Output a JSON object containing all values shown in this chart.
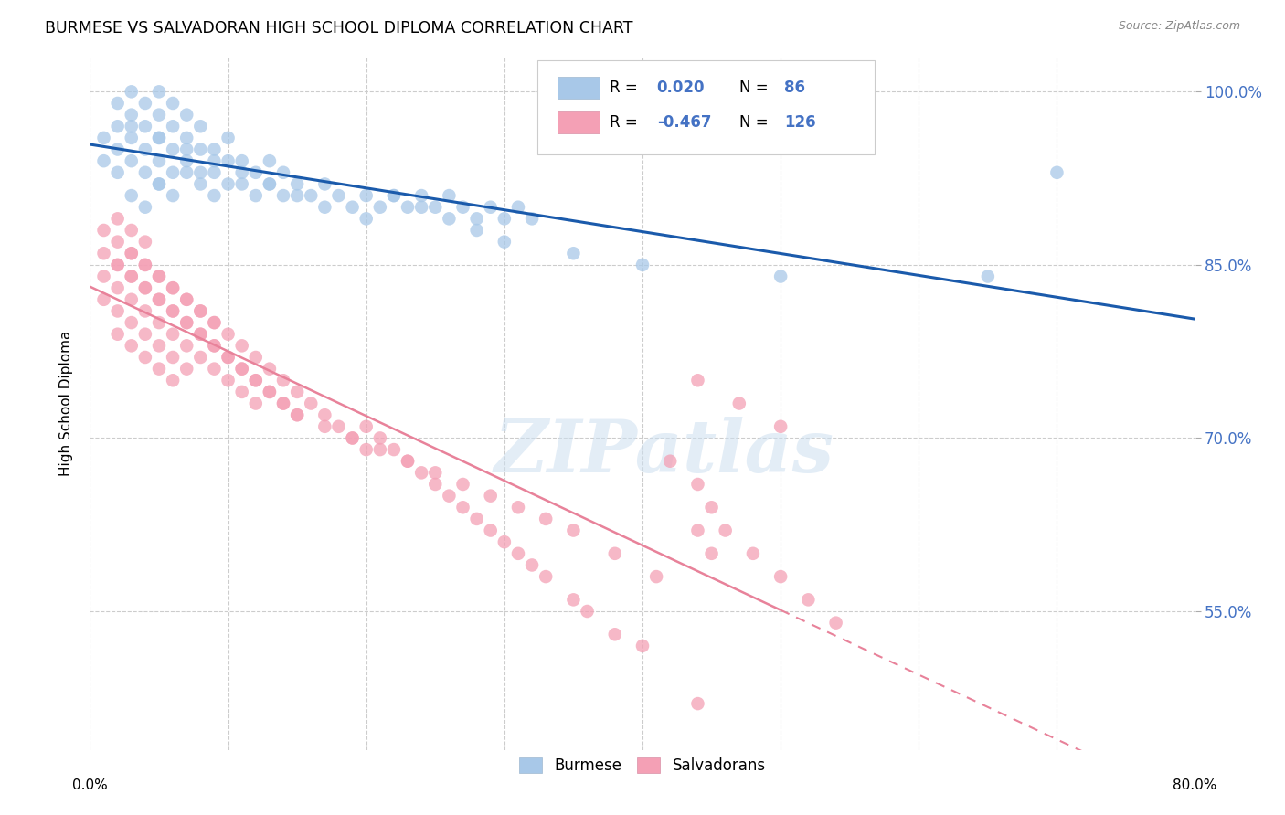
{
  "title": "BURMESE VS SALVADORAN HIGH SCHOOL DIPLOMA CORRELATION CHART",
  "source": "Source: ZipAtlas.com",
  "ylabel": "High School Diploma",
  "ytick_labels": [
    "100.0%",
    "85.0%",
    "70.0%",
    "55.0%"
  ],
  "ytick_values": [
    1.0,
    0.85,
    0.7,
    0.55
  ],
  "xlim": [
    0.0,
    0.8
  ],
  "ylim": [
    0.43,
    1.03
  ],
  "burmese_color": "#a8c8e8",
  "salvadoran_color": "#f4a0b5",
  "burmese_line_color": "#1a5aab",
  "salvadoran_line_color": "#e8829a",
  "watermark_text": "ZIPatlas",
  "background_color": "#ffffff",
  "grid_color": "#cccccc",
  "burmese_R": "0.020",
  "burmese_N": "86",
  "salvadoran_R": "-0.467",
  "salvadoran_N": "126",
  "legend_color": "#4472c4",
  "burmese_x": [
    0.01,
    0.01,
    0.02,
    0.02,
    0.02,
    0.02,
    0.03,
    0.03,
    0.03,
    0.03,
    0.04,
    0.04,
    0.04,
    0.04,
    0.05,
    0.05,
    0.05,
    0.05,
    0.05,
    0.06,
    0.06,
    0.06,
    0.06,
    0.07,
    0.07,
    0.07,
    0.08,
    0.08,
    0.08,
    0.09,
    0.09,
    0.1,
    0.1,
    0.1,
    0.11,
    0.11,
    0.12,
    0.12,
    0.13,
    0.13,
    0.14,
    0.14,
    0.15,
    0.16,
    0.17,
    0.18,
    0.19,
    0.2,
    0.21,
    0.22,
    0.23,
    0.24,
    0.25,
    0.26,
    0.27,
    0.28,
    0.29,
    0.3,
    0.31,
    0.32,
    0.03,
    0.04,
    0.05,
    0.06,
    0.07,
    0.08,
    0.09,
    0.2,
    0.22,
    0.24,
    0.26,
    0.28,
    0.3,
    0.35,
    0.4,
    0.5,
    0.65,
    0.7,
    0.03,
    0.05,
    0.07,
    0.09,
    0.11,
    0.13,
    0.15,
    0.17
  ],
  "burmese_y": [
    0.94,
    0.96,
    0.93,
    0.95,
    0.97,
    0.99,
    0.94,
    0.96,
    0.98,
    1.0,
    0.93,
    0.95,
    0.97,
    0.99,
    0.92,
    0.94,
    0.96,
    0.98,
    1.0,
    0.93,
    0.95,
    0.97,
    0.99,
    0.94,
    0.96,
    0.98,
    0.93,
    0.95,
    0.97,
    0.93,
    0.95,
    0.92,
    0.94,
    0.96,
    0.92,
    0.94,
    0.91,
    0.93,
    0.92,
    0.94,
    0.91,
    0.93,
    0.92,
    0.91,
    0.92,
    0.91,
    0.9,
    0.91,
    0.9,
    0.91,
    0.9,
    0.91,
    0.9,
    0.91,
    0.9,
    0.89,
    0.9,
    0.89,
    0.9,
    0.89,
    0.91,
    0.9,
    0.92,
    0.91,
    0.93,
    0.92,
    0.91,
    0.89,
    0.91,
    0.9,
    0.89,
    0.88,
    0.87,
    0.86,
    0.85,
    0.84,
    0.84,
    0.93,
    0.97,
    0.96,
    0.95,
    0.94,
    0.93,
    0.92,
    0.91,
    0.9
  ],
  "salvadoran_x": [
    0.01,
    0.01,
    0.01,
    0.01,
    0.02,
    0.02,
    0.02,
    0.02,
    0.02,
    0.02,
    0.03,
    0.03,
    0.03,
    0.03,
    0.03,
    0.03,
    0.04,
    0.04,
    0.04,
    0.04,
    0.04,
    0.04,
    0.05,
    0.05,
    0.05,
    0.05,
    0.05,
    0.06,
    0.06,
    0.06,
    0.06,
    0.06,
    0.07,
    0.07,
    0.07,
    0.07,
    0.08,
    0.08,
    0.08,
    0.09,
    0.09,
    0.09,
    0.1,
    0.1,
    0.1,
    0.11,
    0.11,
    0.11,
    0.12,
    0.12,
    0.12,
    0.13,
    0.13,
    0.14,
    0.14,
    0.15,
    0.15,
    0.16,
    0.17,
    0.18,
    0.19,
    0.2,
    0.2,
    0.21,
    0.22,
    0.23,
    0.24,
    0.25,
    0.26,
    0.27,
    0.28,
    0.29,
    0.3,
    0.31,
    0.32,
    0.33,
    0.35,
    0.36,
    0.38,
    0.4,
    0.42,
    0.44,
    0.45,
    0.46,
    0.48,
    0.5,
    0.52,
    0.54,
    0.02,
    0.03,
    0.04,
    0.05,
    0.06,
    0.07,
    0.08,
    0.09,
    0.1,
    0.11,
    0.12,
    0.13,
    0.14,
    0.15,
    0.17,
    0.19,
    0.21,
    0.23,
    0.25,
    0.27,
    0.29,
    0.31,
    0.33,
    0.35,
    0.38,
    0.41,
    0.44,
    0.47,
    0.5,
    0.03,
    0.04,
    0.05,
    0.06,
    0.07,
    0.08,
    0.09,
    0.44,
    0.45,
    0.44
  ],
  "salvadoran_y": [
    0.88,
    0.86,
    0.84,
    0.82,
    0.87,
    0.85,
    0.83,
    0.81,
    0.89,
    0.79,
    0.86,
    0.84,
    0.82,
    0.8,
    0.88,
    0.78,
    0.85,
    0.83,
    0.81,
    0.79,
    0.87,
    0.77,
    0.84,
    0.82,
    0.8,
    0.78,
    0.76,
    0.83,
    0.81,
    0.79,
    0.77,
    0.75,
    0.82,
    0.8,
    0.78,
    0.76,
    0.81,
    0.79,
    0.77,
    0.8,
    0.78,
    0.76,
    0.79,
    0.77,
    0.75,
    0.78,
    0.76,
    0.74,
    0.77,
    0.75,
    0.73,
    0.76,
    0.74,
    0.75,
    0.73,
    0.74,
    0.72,
    0.73,
    0.72,
    0.71,
    0.7,
    0.71,
    0.69,
    0.7,
    0.69,
    0.68,
    0.67,
    0.66,
    0.65,
    0.64,
    0.63,
    0.62,
    0.61,
    0.6,
    0.59,
    0.58,
    0.56,
    0.55,
    0.53,
    0.52,
    0.68,
    0.66,
    0.64,
    0.62,
    0.6,
    0.58,
    0.56,
    0.54,
    0.85,
    0.84,
    0.83,
    0.82,
    0.81,
    0.8,
    0.79,
    0.78,
    0.77,
    0.76,
    0.75,
    0.74,
    0.73,
    0.72,
    0.71,
    0.7,
    0.69,
    0.68,
    0.67,
    0.66,
    0.65,
    0.64,
    0.63,
    0.62,
    0.6,
    0.58,
    0.75,
    0.73,
    0.71,
    0.86,
    0.85,
    0.84,
    0.83,
    0.82,
    0.81,
    0.8,
    0.62,
    0.6,
    0.47
  ]
}
